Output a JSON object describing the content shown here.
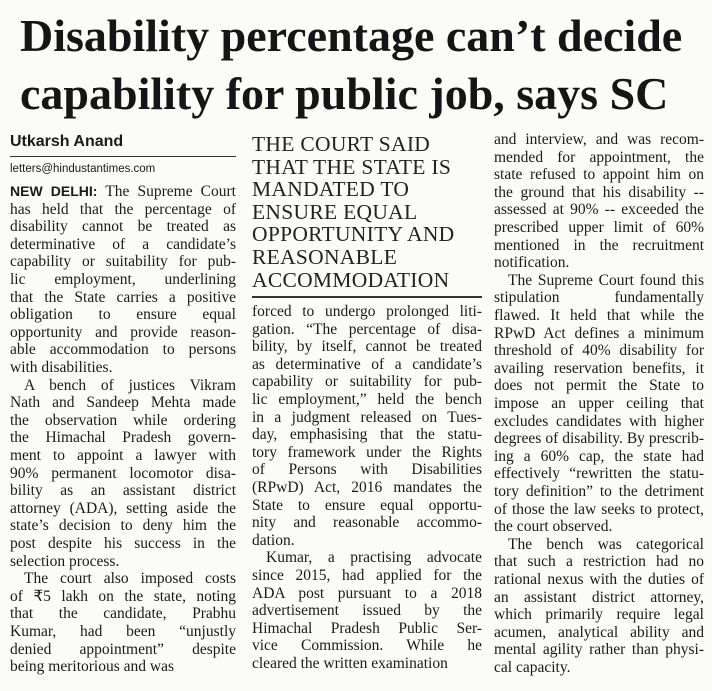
{
  "headline": [
    "Disability percentage can’t decide",
    "capability for public job, says SC"
  ],
  "byline": "Utkarsh Anand",
  "email": "letters@hindustantimes.com",
  "dateline": "NEW DELHI:",
  "pull_quote": [
    "THE COURT SAID",
    "THAT THE STATE IS",
    "MANDATED TO",
    "ENSURE EQUAL",
    "OPPORTUNITY AND",
    "REASONABLE",
    "ACCOMMODATION"
  ],
  "columns": [
    [
      [
        "The Supreme Court",
        "has held that the percentage of",
        "disability cannot be treated as",
        "determinative of a candidate’s",
        "capability or suitability for pub-",
        "lic employment, underlining",
        "that the State carries a positive",
        "obligation to ensure equal",
        "opportunity and provide reason-",
        "able accommodation to persons",
        "with disabilities."
      ],
      [
        "A bench of justices Vikram",
        "Nath and Sandeep Mehta made",
        "the observation while ordering",
        "the Himachal Pradesh govern-",
        "ment to appoint a lawyer with",
        "90% permanent locomotor disa-",
        "bility as an assistant district",
        "attorney (ADA), setting aside the",
        "state’s decision to deny him the",
        "post despite his success in the",
        "selection process."
      ],
      [
        "The court also imposed costs",
        "of ₹5 lakh on the state, noting",
        "that the candidate, Prabhu",
        "Kumar, had been “unjustly",
        "denied appointment” despite",
        "being meritorious and was"
      ]
    ],
    [
      [
        "forced to undergo prolonged liti-",
        "gation. “The percentage of disa-",
        "bility, by itself, cannot be treated",
        "as determinative of a candidate’s",
        "capability or suitability for pub-",
        "lic employment,” held the bench",
        "in a judgment released on Tues-",
        "day, emphasising that the statu-",
        "tory framework under the Rights",
        "of Persons with Disabilities",
        "(RPwD) Act, 2016 mandates the",
        "State to ensure equal opportu-",
        "nity and reasonable accommo-",
        "dation."
      ],
      [
        "Kumar, a practising advocate",
        "since 2015, had applied for the",
        "ADA post pursuant to a 2018",
        "advertisement issued by the",
        "Himachal Pradesh Public Ser-",
        "vice Commission. While he",
        "cleared the written examination"
      ]
    ],
    [
      [
        "and interview, and was recom-",
        "mended for appointment, the",
        "state refused to appoint him on",
        "the ground that his disability --",
        "assessed at 90% -- exceeded the",
        "prescribed upper limit of 60%",
        "mentioned in the recruitment",
        "notification."
      ],
      [
        "The Supreme Court found this",
        "stipulation fundamentally",
        "flawed. It held that while the",
        "RPwD Act defines a minimum",
        "threshold of 40% disability for",
        "availing reservation benefits, it",
        "does not permit the State to",
        "impose an upper ceiling that",
        "excludes candidates with higher",
        "degrees of disability. By prescrib-",
        "ing a 60% cap, the state had",
        "effectively “rewritten the statu-",
        "tory definition” to the detriment",
        "of those the law seeks to protect,",
        "the court observed."
      ],
      [
        "The bench was categorical",
        "that such a restriction had no",
        "rational nexus with the duties of",
        "an assistant district attorney,",
        "which primarily require legal",
        "acumen, analytical ability and",
        "mental agility rather than physi-",
        "cal capacity."
      ]
    ]
  ]
}
